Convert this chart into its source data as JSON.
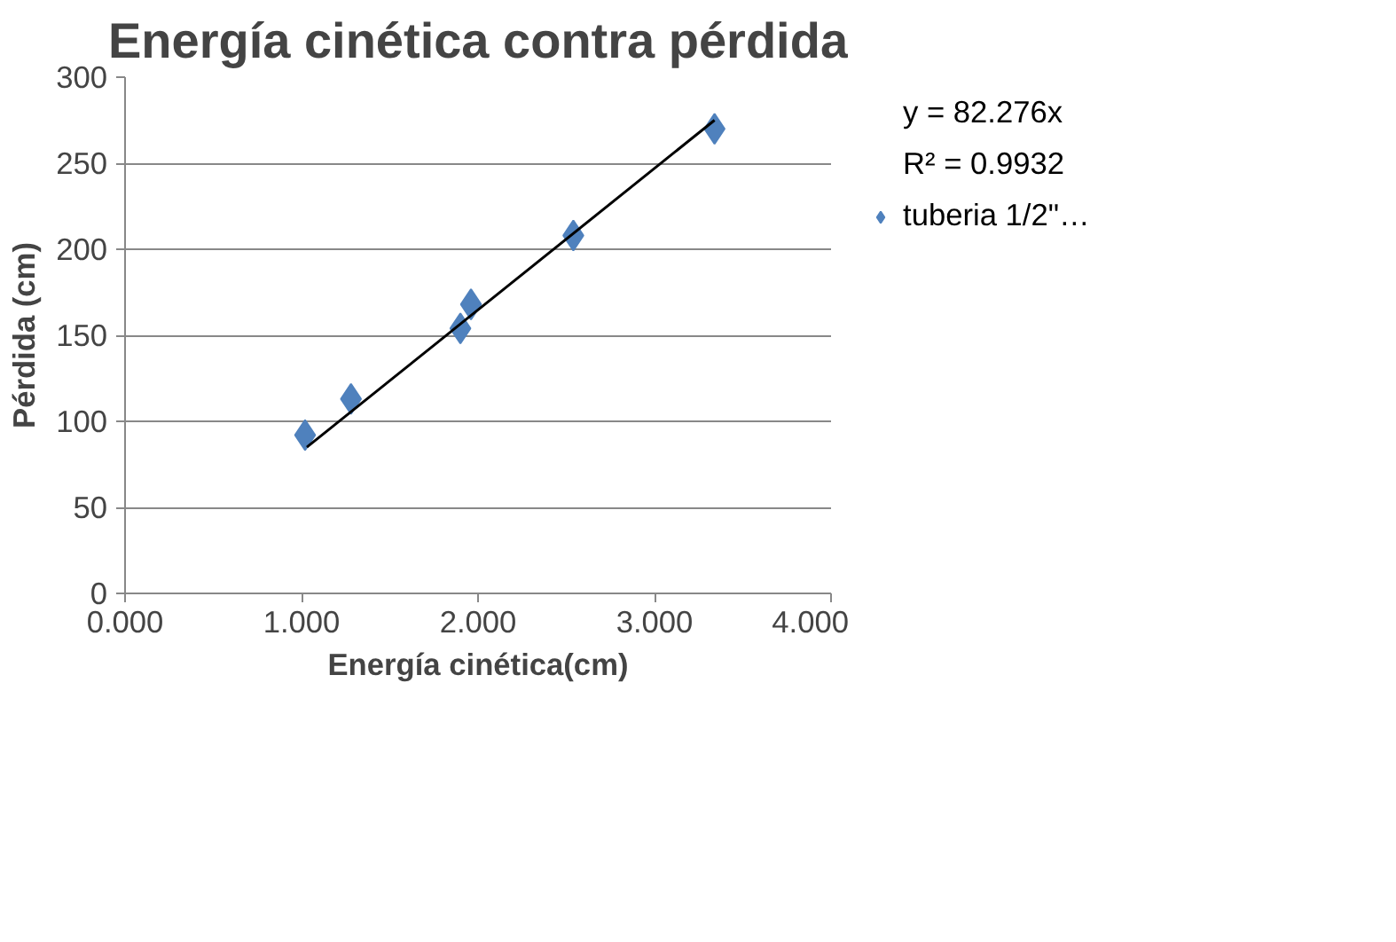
{
  "chart_data": {
    "type": "scatter",
    "title": "Energía cinética contra pérdida",
    "xlabel": "Energía cinética(cm)",
    "ylabel": "Pérdida (cm)",
    "xlim": [
      0,
      4
    ],
    "xticks": [
      {
        "value": 0,
        "label": "0.000"
      },
      {
        "value": 1,
        "label": "1.000"
      },
      {
        "value": 2,
        "label": "2.000"
      },
      {
        "value": 3,
        "label": "3.000"
      },
      {
        "value": 4,
        "label": "4.000"
      }
    ],
    "ylim": [
      0,
      300
    ],
    "yticks": [
      0,
      50,
      100,
      150,
      200,
      250,
      300
    ],
    "grid": "y",
    "legend": "right",
    "marker": "diamond",
    "annotations": [
      "y = 82.276x",
      "R² = 0.9932"
    ],
    "series": [
      {
        "name": "tuberia 1/2\"…",
        "color": "#4f81bd",
        "x": [
          1.02,
          1.28,
          1.9,
          1.96,
          2.54,
          3.34
        ],
        "values": [
          92,
          113,
          154,
          168,
          208,
          270
        ]
      },
      {
        "type": "line",
        "color": "#000000",
        "marker": "none",
        "x": [
          1.03,
          3.34
        ],
        "values": [
          85,
          275
        ]
      }
    ]
  }
}
